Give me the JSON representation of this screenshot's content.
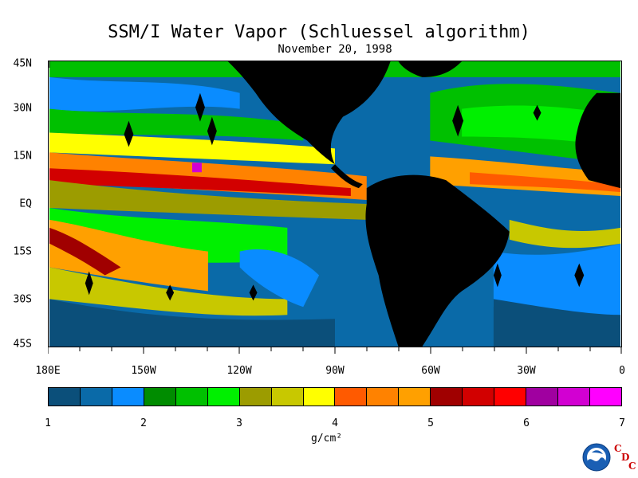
{
  "title": "SSM/I Water Vapor (Schluessel algorithm)",
  "subtitle": "November 20, 1998",
  "lat_labels": [
    "45N",
    "30N",
    "15N",
    "EQ",
    "15S",
    "30S",
    "45S"
  ],
  "lon_labels": [
    "180E",
    "150W",
    "120W",
    "90W",
    "60W",
    "30W",
    "0"
  ],
  "colorbar": {
    "colors": [
      "#0b4f7a",
      "#0a6aa8",
      "#0a8cff",
      "#008c00",
      "#00c000",
      "#00f000",
      "#9c9c00",
      "#c8c800",
      "#ffff00",
      "#ff5a00",
      "#ff8200",
      "#ffa000",
      "#a00000",
      "#d20000",
      "#ff0000",
      "#a000a0",
      "#d200d2",
      "#ff00ff"
    ],
    "tick_labels": [
      "1",
      "2",
      "3",
      "4",
      "5",
      "6",
      "7"
    ]
  },
  "units": "g/cm²",
  "logo": {
    "icon": "noaa-logo",
    "letters": [
      "C",
      "D",
      "C"
    ]
  }
}
